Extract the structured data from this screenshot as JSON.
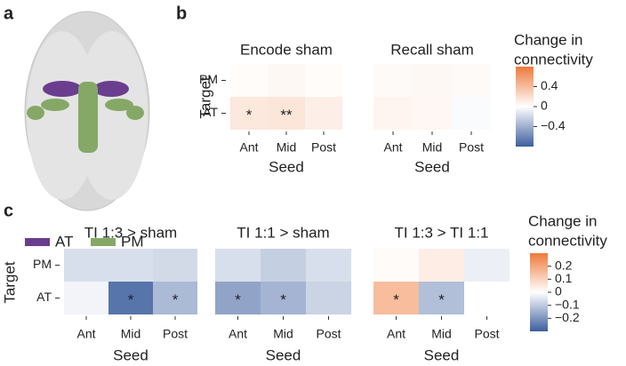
{
  "panel_a": {
    "label": "a",
    "legend": [
      {
        "name": "AT",
        "color": "#6a3d8f"
      },
      {
        "name": "PM",
        "color": "#86a866"
      }
    ]
  },
  "chart_data": [
    {
      "type": "heatmap",
      "panel": "b",
      "titles": [
        "Encode sham",
        "Recall sham"
      ],
      "categories": [
        "Ant",
        "Mid",
        "Post"
      ],
      "y_categories": [
        "PM",
        "AT"
      ],
      "xlabel": "Seed",
      "ylabel": "Target",
      "matrices": [
        [
          [
            0.02,
            0.04,
            0.02
          ],
          [
            0.14,
            0.15,
            0.1
          ]
        ],
        [
          [
            0.03,
            0.04,
            0.03
          ],
          [
            0.06,
            0.05,
            -0.02
          ]
        ]
      ],
      "annotations": [
        [
          [
            null,
            null,
            null
          ],
          [
            "*",
            "**",
            null
          ]
        ],
        [
          [
            null,
            null,
            null
          ],
          [
            null,
            null,
            null
          ]
        ]
      ],
      "colorbar": {
        "title_lines": [
          "Change in",
          "connectivity"
        ],
        "vlim": [
          -0.8,
          0.8
        ],
        "colors": [
          "#3d5f9e",
          "#ffffff",
          "#ee7a3b"
        ],
        "ticks": [
          0.4,
          0,
          {
            "value": -0.4,
            "label": "−0.4"
          }
        ]
      }
    },
    {
      "type": "heatmap",
      "panel": "c",
      "titles": [
        "TI 1:3 > sham",
        "TI 1:1 > sham",
        "TI 1:3 > TI 1:1"
      ],
      "categories": [
        "Ant",
        "Mid",
        "Post"
      ],
      "y_categories": [
        "PM",
        "AT"
      ],
      "xlabel": "Seed",
      "ylabel": "Target",
      "matrices": [
        [
          [
            -0.06,
            -0.06,
            -0.07
          ],
          [
            -0.02,
            -0.26,
            -0.13
          ]
        ],
        [
          [
            -0.06,
            -0.09,
            -0.06
          ],
          [
            -0.17,
            -0.14,
            -0.08
          ]
        ],
        [
          [
            0.01,
            0.04,
            -0.03
          ],
          [
            0.15,
            -0.12,
            0.0
          ]
        ]
      ],
      "annotations": [
        [
          [
            null,
            null,
            null
          ],
          [
            null,
            "*",
            "*"
          ]
        ],
        [
          [
            null,
            null,
            null
          ],
          [
            "*",
            "*",
            null
          ]
        ],
        [
          [
            null,
            null,
            null
          ],
          [
            "*",
            "*",
            null
          ]
        ]
      ],
      "colorbar": {
        "title_lines": [
          "Change in",
          "connectivity"
        ],
        "vlim": [
          -0.3,
          0.3
        ],
        "colors": [
          "#3d5f9e",
          "#ffffff",
          "#ee7a3b"
        ],
        "ticks": [
          0.2,
          0.1,
          0,
          {
            "value": -0.1,
            "label": "−0.1"
          },
          {
            "value": -0.2,
            "label": "−0.2"
          }
        ]
      }
    }
  ]
}
